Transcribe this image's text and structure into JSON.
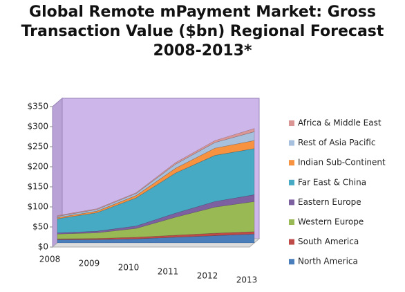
{
  "chart_data": {
    "type": "stacked_area",
    "title": "Global Remote mPayment Market: Gross Transaction Value ($bn) Regional Forecast 2008-2013*",
    "categories": [
      "2008",
      "2009",
      "2010",
      "2011",
      "2012",
      "2013"
    ],
    "series": [
      {
        "name": "North America",
        "color": "#4a7ebb",
        "values": [
          8,
          8,
          10,
          14,
          18,
          22
        ]
      },
      {
        "name": "South America",
        "color": "#be4b48",
        "values": [
          2,
          3,
          4,
          5,
          6,
          6
        ]
      },
      {
        "name": "Western Europe",
        "color": "#98b954",
        "values": [
          12,
          14,
          22,
          45,
          65,
          75
        ]
      },
      {
        "name": "Eastern Europe",
        "color": "#7d60a0",
        "values": [
          3,
          4,
          6,
          10,
          14,
          17
        ]
      },
      {
        "name": "Far East & China",
        "color": "#46aac5",
        "values": [
          35,
          46,
          70,
          100,
          115,
          115
        ]
      },
      {
        "name": "Indian Sub-Continent",
        "color": "#f69240",
        "values": [
          3,
          4,
          6,
          12,
          18,
          20
        ]
      },
      {
        "name": "Rest of Asia Pacific",
        "color": "#a7c0de",
        "values": [
          3,
          4,
          5,
          10,
          14,
          22
        ]
      },
      {
        "name": "Africa & Middle East",
        "color": "#d99694",
        "values": [
          2,
          2,
          2,
          4,
          5,
          8
        ]
      }
    ],
    "ylim": [
      0,
      350
    ],
    "yticks": [
      {
        "value": 0,
        "label": "$0"
      },
      {
        "value": 50,
        "label": "$50"
      },
      {
        "value": 100,
        "label": "$100"
      },
      {
        "value": 150,
        "label": "$150"
      },
      {
        "value": 200,
        "label": "$200"
      },
      {
        "value": 250,
        "label": "$250"
      },
      {
        "value": 300,
        "label": "$300"
      },
      {
        "value": 350,
        "label": "$350"
      }
    ],
    "legend": "right"
  }
}
